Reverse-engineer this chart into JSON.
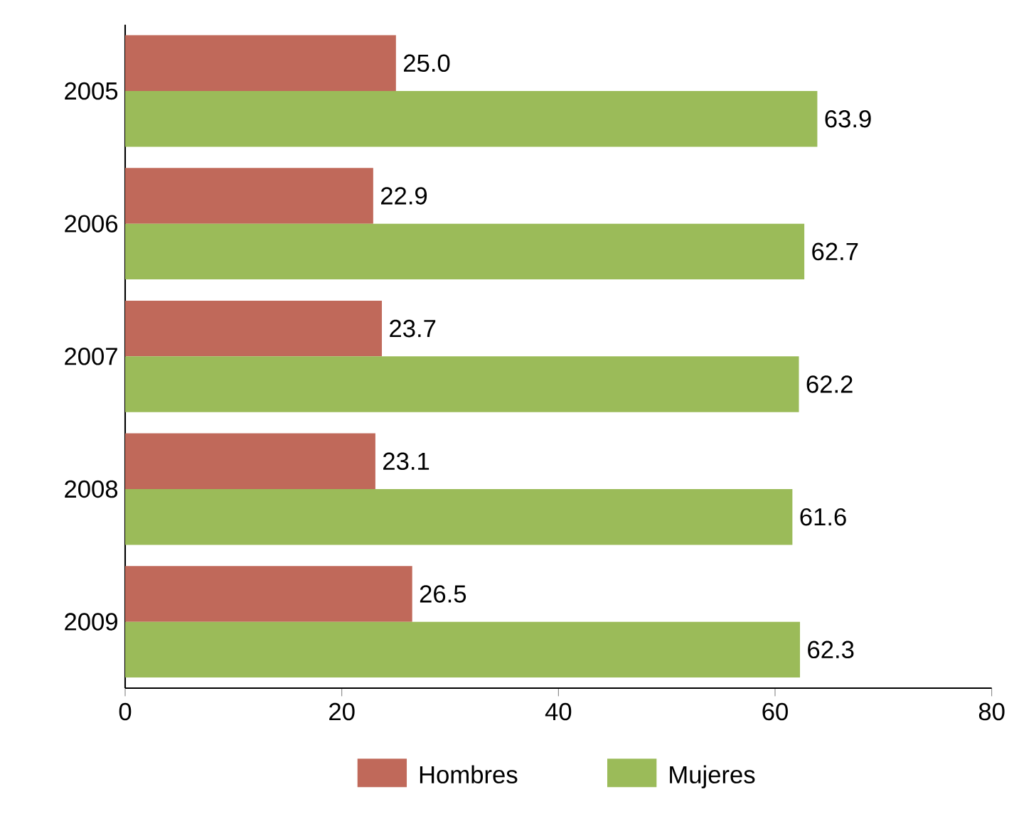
{
  "chart_data": {
    "type": "bar",
    "orientation": "horizontal",
    "categories": [
      "2005",
      "2006",
      "2007",
      "2008",
      "2009"
    ],
    "series": [
      {
        "name": "Hombres",
        "color": "#c0695a",
        "values": [
          25.0,
          22.9,
          23.7,
          23.1,
          26.5
        ],
        "value_labels": [
          "25.0",
          "22.9",
          "23.7",
          "23.1",
          "26.5"
        ]
      },
      {
        "name": "Mujeres",
        "color": "#9bbb59",
        "values": [
          63.9,
          62.7,
          62.2,
          61.6,
          62.3
        ],
        "value_labels": [
          "63.9",
          "62.7",
          "62.2",
          "61.6",
          "62.3"
        ]
      }
    ],
    "xlim": [
      0,
      80
    ],
    "xticks": [
      0,
      20,
      40,
      60,
      80
    ],
    "legend": "bottom",
    "grid": false
  }
}
